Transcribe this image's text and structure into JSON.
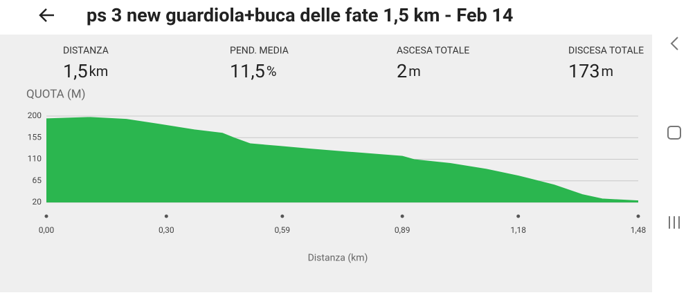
{
  "header": {
    "title": "ps 3 new guardiola+buca delle fate 1,5 km - Feb 14"
  },
  "stats": [
    {
      "label": "DISTANZA",
      "value": "1,5",
      "unit": "km"
    },
    {
      "label": "PEND. MEDIA",
      "value": "11,5",
      "unit": "%"
    },
    {
      "label": "ASCESA TOTALE",
      "value": "2",
      "unit": "m"
    },
    {
      "label": "DISCESA TOTALE",
      "value": "173",
      "unit": "m"
    }
  ],
  "chart_data": {
    "type": "area",
    "ylabel": "QUOTA (M)",
    "xlabel": "Distanza (km)",
    "color": "#2bb64f",
    "grid": true,
    "x": [
      0,
      0.11,
      0.2,
      0.28,
      0.37,
      0.44,
      0.47,
      0.51,
      0.58,
      0.66,
      0.75,
      0.89,
      0.92,
      1.01,
      1.1,
      1.18,
      1.27,
      1.34,
      1.39,
      1.48
    ],
    "values": [
      194,
      197,
      193,
      183,
      171,
      164,
      154,
      142,
      137,
      131,
      125,
      116,
      109,
      101,
      89,
      75,
      56,
      36,
      27,
      23
    ],
    "xlim": [
      0,
      1.48
    ],
    "ylim": [
      20,
      200
    ],
    "xticks": [
      {
        "value": 0,
        "label": "0,00"
      },
      {
        "value": 0.3,
        "label": "0,30"
      },
      {
        "value": 0.59,
        "label": "0,59"
      },
      {
        "value": 0.89,
        "label": "0,89"
      },
      {
        "value": 1.18,
        "label": "1,18"
      },
      {
        "value": 1.48,
        "label": "1,48"
      }
    ],
    "yticks": [
      20,
      65,
      110,
      155,
      200
    ]
  }
}
